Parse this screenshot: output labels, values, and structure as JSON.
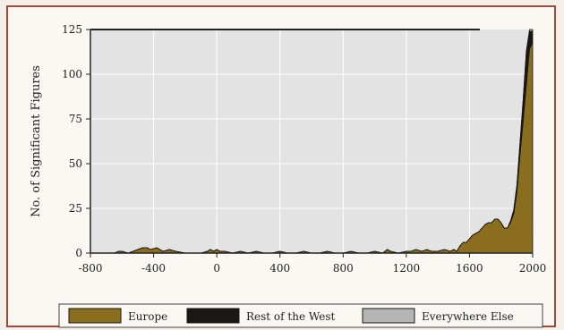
{
  "chart_data": {
    "type": "area",
    "title": "",
    "xlabel": "",
    "ylabel": "No. of Significant Figures",
    "xlim": [
      -800,
      2000
    ],
    "ylim": [
      0,
      125
    ],
    "xticks": [
      -800,
      -400,
      0,
      400,
      800,
      1200,
      1600,
      2000
    ],
    "xtick_labels": [
      "-800",
      "-400",
      "0",
      "400",
      "800",
      "1200",
      "1600",
      "2000"
    ],
    "yticks": [
      0,
      25,
      50,
      75,
      100,
      125
    ],
    "grid": true,
    "stacked": true,
    "legend_position": "bottom",
    "x": [
      -800,
      -650,
      -620,
      -600,
      -560,
      -500,
      -470,
      -440,
      -420,
      -380,
      -340,
      -300,
      -260,
      -200,
      -150,
      -100,
      -60,
      -40,
      -20,
      0,
      20,
      50,
      100,
      150,
      200,
      250,
      300,
      350,
      400,
      450,
      500,
      550,
      600,
      650,
      700,
      750,
      800,
      850,
      900,
      950,
      1000,
      1050,
      1080,
      1100,
      1150,
      1200,
      1230,
      1260,
      1300,
      1330,
      1360,
      1400,
      1440,
      1480,
      1500,
      1520,
      1540,
      1560,
      1580,
      1600,
      1620,
      1640,
      1660,
      1680,
      1700,
      1720,
      1740,
      1760,
      1780,
      1800,
      1820,
      1840,
      1860,
      1880,
      1900,
      1920,
      1940,
      1960,
      1980,
      2000
    ],
    "series": [
      {
        "name": "Europe",
        "color": "#8a6d1f",
        "values": [
          0,
          0,
          1,
          1,
          0,
          2,
          3,
          3,
          2,
          3,
          1,
          2,
          1,
          0,
          0,
          0,
          1,
          2,
          1,
          2,
          1,
          1,
          0,
          1,
          0,
          1,
          0,
          0,
          1,
          0,
          0,
          1,
          0,
          0,
          1,
          0,
          0,
          1,
          0,
          0,
          1,
          0,
          2,
          1,
          0,
          1,
          1,
          2,
          1,
          2,
          1,
          1,
          2,
          1,
          2,
          1,
          4,
          6,
          6,
          8,
          10,
          11,
          12,
          14,
          16,
          17,
          17,
          19,
          19,
          17,
          14,
          14,
          17,
          22,
          34,
          55,
          74,
          94,
          114,
          118
        ]
      },
      {
        "name": "Rest of the West",
        "color": "#1a1814",
        "values": [
          0,
          0,
          0,
          0,
          0,
          0,
          0,
          0,
          0,
          0,
          0,
          0,
          0,
          0,
          0,
          0,
          0,
          0,
          0,
          0,
          0,
          0,
          0,
          0,
          0,
          0,
          0,
          0,
          0,
          0,
          0,
          0,
          0,
          0,
          0,
          0,
          0,
          0,
          0,
          0,
          0,
          0,
          0,
          0,
          0,
          0,
          0,
          0,
          0,
          0,
          0,
          0,
          0,
          0,
          0,
          0,
          0,
          0,
          0,
          0,
          0,
          0,
          0,
          0,
          0,
          0,
          0,
          0,
          0,
          0,
          0,
          0,
          1,
          2,
          4,
          7,
          12,
          18,
          10,
          6
        ]
      },
      {
        "name": "Everywhere Else",
        "color": "#b5b5b5",
        "values": [
          0,
          0,
          0,
          0,
          0,
          0,
          0,
          0,
          0,
          0,
          0,
          0,
          0,
          0,
          0,
          0,
          0,
          0,
          0,
          0,
          0,
          0,
          0,
          0,
          0,
          0,
          0,
          0,
          0,
          0,
          0,
          0,
          0,
          0,
          0,
          0,
          0,
          0,
          0,
          0,
          0,
          0,
          0,
          0,
          0,
          0,
          0,
          0,
          0,
          0,
          0,
          0,
          0,
          0,
          0,
          0,
          0,
          0,
          0,
          0,
          0,
          0,
          0,
          0,
          0,
          0,
          0,
          0,
          0,
          0,
          0,
          0,
          0,
          0,
          0,
          0,
          0,
          1,
          1,
          1
        ]
      }
    ]
  },
  "colors": {
    "plot_background": "#e3e3e3",
    "grid": "#ffffff",
    "frame": "#9c4a3a"
  }
}
